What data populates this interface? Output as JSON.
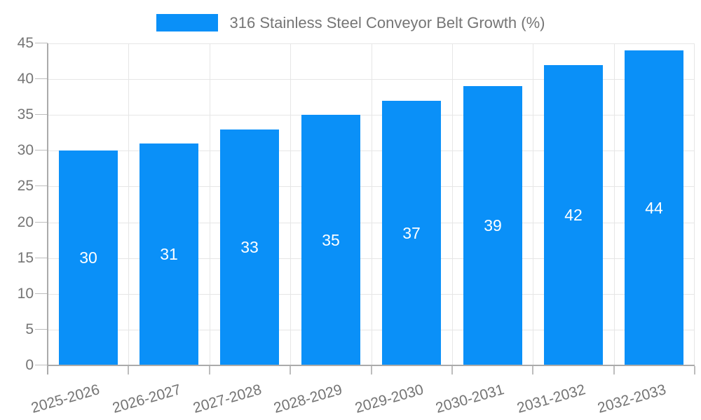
{
  "chart_data": {
    "type": "bar",
    "title": "",
    "series": [
      {
        "name": "316 Stainless Steel Conveyor Belt Growth (%)",
        "values": [
          30,
          31,
          33,
          35,
          37,
          39,
          42,
          44
        ]
      }
    ],
    "categories": [
      "2025-2026",
      "2026-2027",
      "2027-2028",
      "2028-2029",
      "2029-2030",
      "2030-2031",
      "2031-2032",
      "2032-2033"
    ],
    "bar_value_labels": [
      "30",
      "31",
      "33",
      "35",
      "37",
      "39",
      "42",
      "44"
    ],
    "y_ticks": [
      0,
      5,
      10,
      15,
      20,
      25,
      30,
      35,
      40,
      45
    ],
    "ylim": [
      0,
      45
    ],
    "grid": true,
    "legend_position": "top-center",
    "bar_labels_shown": true,
    "x_label_rotation_deg": -16
  },
  "colors": {
    "bar": "#0a90f8",
    "bar_label": "#ffffff",
    "axis_text": "#757575",
    "legend_text": "#757575",
    "gridline": "#e6e6e6",
    "axis_line": "#aaaaaa",
    "tick": "#bdbdbd",
    "background": "#ffffff"
  }
}
